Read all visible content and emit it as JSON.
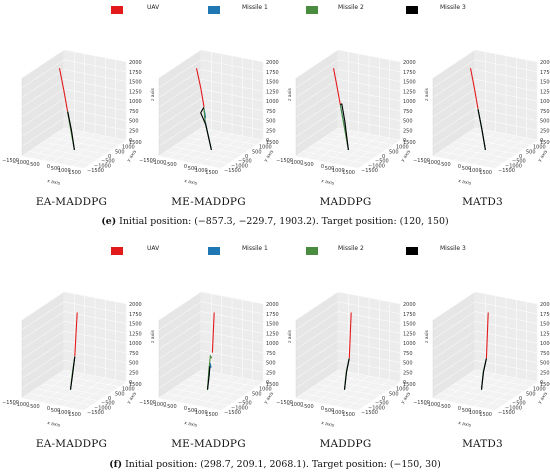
{
  "legend": [
    {
      "name": "UAV",
      "color": "#e31a1c"
    },
    {
      "name": "Missile 1",
      "color": "#1f77b4"
    },
    {
      "name": "Missile 2",
      "color": "#4a8c3f"
    },
    {
      "name": "Missile 3",
      "color": "#000000"
    }
  ],
  "axes": {
    "x_label": "x axis",
    "y_label": "y axis",
    "z_label": "z axis",
    "x_ticks": [
      "−1500",
      "−1000",
      "−500",
      "0",
      "500",
      "1000",
      "1500"
    ],
    "y_ticks": [
      "−1500",
      "−1000",
      "−500",
      "0",
      "500",
      "1000",
      "1500"
    ],
    "z_ticks": [
      "0",
      "250",
      "500",
      "750",
      "1000",
      "1250",
      "1500",
      "1750",
      "2000"
    ],
    "xlim": [
      -1500,
      1500
    ],
    "ylim": [
      -1500,
      1500
    ],
    "zlim": [
      0,
      2000
    ]
  },
  "groups": [
    {
      "id": "e",
      "caption_label": "(e)",
      "caption_text": " Initial position: (−857.3, −229.7, 1903.2). Target position: (120, 150)"
    },
    {
      "id": "f",
      "caption_label": "(f)",
      "caption_text": " Initial position: (298.7, 209.1, 2068.1). Target position: (−150, 30)"
    }
  ],
  "methods": [
    "EA-MADDPG",
    "ME-MADDPG",
    "MADDPG",
    "MATD3"
  ],
  "chart_data": [
    {
      "type": "line",
      "panel": "e1",
      "title": "EA-MADDPG",
      "series": [
        {
          "name": "UAV",
          "points": [
            [
              -857.3,
              -229.7,
              1903.2
            ],
            [
              -600,
              -150,
              1400
            ],
            [
              -350,
              -50,
              900
            ]
          ]
        },
        {
          "name": "Missile 1",
          "points": [
            [
              120,
              150,
              0
            ],
            [
              -100,
              50,
              450
            ],
            [
              -330,
              -40,
              880
            ]
          ]
        },
        {
          "name": "Missile 2",
          "points": [
            [
              120,
              150,
              0
            ],
            [
              -120,
              60,
              470
            ],
            [
              -345,
              -45,
              895
            ]
          ]
        },
        {
          "name": "Missile 3",
          "points": [
            [
              120,
              150,
              0
            ],
            [
              -90,
              40,
              440
            ],
            [
              -340,
              -50,
              890
            ]
          ]
        }
      ]
    },
    {
      "type": "line",
      "panel": "e2",
      "title": "ME-MADDPG",
      "series": [
        {
          "name": "UAV",
          "points": [
            [
              -857.3,
              -229.7,
              1903.2
            ],
            [
              -600,
              -150,
              1450
            ],
            [
              -380,
              -60,
              1000
            ]
          ]
        },
        {
          "name": "Missile 1",
          "points": [
            [
              120,
              150,
              0
            ],
            [
              -300,
              0,
              700
            ],
            [
              -200,
              100,
              800
            ],
            [
              -380,
              -50,
              980
            ]
          ]
        },
        {
          "name": "Missile 2",
          "points": [
            [
              120,
              150,
              0
            ],
            [
              -250,
              50,
              650
            ],
            [
              -400,
              -80,
              960
            ]
          ]
        },
        {
          "name": "Missile 3",
          "points": [
            [
              120,
              150,
              0
            ],
            [
              -200,
              80,
              600
            ],
            [
              -500,
              0,
              850
            ],
            [
              -390,
              -60,
              990
            ]
          ]
        }
      ]
    },
    {
      "type": "line",
      "panel": "e3",
      "title": "MADDPG",
      "series": [
        {
          "name": "UAV",
          "points": [
            [
              -857.3,
              -229.7,
              1903.2
            ],
            [
              -650,
              -160,
              1500
            ],
            [
              -420,
              -70,
              1050
            ]
          ]
        },
        {
          "name": "Missile 1",
          "points": [
            [
              120,
              150,
              0
            ],
            [
              -150,
              60,
              600
            ],
            [
              -410,
              -60,
              1040
            ]
          ]
        },
        {
          "name": "Missile 2",
          "points": [
            [
              120,
              150,
              0
            ],
            [
              -180,
              40,
              620
            ],
            [
              -425,
              -75,
              1045
            ]
          ]
        },
        {
          "name": "Missile 3",
          "points": [
            [
              120,
              150,
              0
            ],
            [
              -100,
              80,
              700
            ],
            [
              -300,
              0,
              1100
            ],
            [
              -420,
              -70,
              1050
            ]
          ]
        }
      ]
    },
    {
      "type": "line",
      "panel": "e4",
      "title": "MATD3",
      "series": [
        {
          "name": "UAV",
          "points": [
            [
              -857.3,
              -229.7,
              1903.2
            ],
            [
              -620,
              -150,
              1450
            ],
            [
              -380,
              -60,
              950
            ]
          ]
        },
        {
          "name": "Missile 1",
          "points": [
            [
              120,
              150,
              0
            ],
            [
              -120,
              50,
              500
            ],
            [
              -375,
              -55,
              945
            ]
          ]
        },
        {
          "name": "Missile 2",
          "points": [
            [
              120,
              150,
              0
            ],
            [
              -140,
              40,
              520
            ],
            [
              -385,
              -65,
              950
            ]
          ]
        },
        {
          "name": "Missile 3",
          "points": [
            [
              120,
              150,
              0
            ],
            [
              -110,
              60,
              480
            ],
            [
              -380,
              -60,
              940
            ]
          ]
        }
      ]
    },
    {
      "type": "line",
      "panel": "f1",
      "title": "EA-MADDPG",
      "series": [
        {
          "name": "UAV",
          "points": [
            [
              298.7,
              209.1,
              2068.1
            ],
            [
              200,
              150,
              1500
            ],
            [
              100,
              90,
              900
            ]
          ]
        },
        {
          "name": "Missile 1",
          "points": [
            [
              -150,
              30,
              0
            ],
            [
              -20,
              60,
              450
            ],
            [
              95,
              85,
              880
            ]
          ]
        },
        {
          "name": "Missile 2",
          "points": [
            [
              -150,
              30,
              0
            ],
            [
              -40,
              55,
              450
            ],
            [
              90,
              80,
              870
            ]
          ]
        },
        {
          "name": "Missile 3",
          "points": [
            [
              -150,
              30,
              0
            ],
            [
              -30,
              50,
              430
            ],
            [
              100,
              88,
              890
            ]
          ]
        }
      ]
    },
    {
      "type": "line",
      "panel": "f2",
      "title": "ME-MADDPG",
      "series": [
        {
          "name": "UAV",
          "points": [
            [
              298.7,
              209.1,
              2068.1
            ],
            [
              230,
              170,
              1600
            ],
            [
              150,
              120,
              1000
            ]
          ]
        },
        {
          "name": "Missile 1",
          "points": [
            [
              -150,
              30,
              0
            ],
            [
              -50,
              50,
              400
            ],
            [
              0,
              60,
              700
            ],
            [
              60,
              80,
              600
            ]
          ]
        },
        {
          "name": "Missile 2",
          "points": [
            [
              -150,
              30,
              0
            ],
            [
              -80,
              40,
              500
            ],
            [
              20,
              70,
              900
            ],
            [
              100,
              100,
              850
            ]
          ]
        },
        {
          "name": "Missile 3",
          "points": [
            [
              -150,
              30,
              0
            ],
            [
              -60,
              45,
              380
            ],
            [
              -20,
              55,
              620
            ]
          ]
        }
      ]
    },
    {
      "type": "line",
      "panel": "f3",
      "title": "MADDPG",
      "series": [
        {
          "name": "UAV",
          "points": [
            [
              298.7,
              209.1,
              2068.1
            ],
            [
              220,
              160,
              1500
            ],
            [
              130,
              100,
              850
            ]
          ]
        },
        {
          "name": "Missile 1",
          "points": [
            [
              -150,
              30,
              0
            ],
            [
              -20,
              70,
              500
            ],
            [
              120,
              95,
              840
            ]
          ]
        },
        {
          "name": "Missile 2",
          "points": [
            [
              -150,
              30,
              0
            ],
            [
              -40,
              60,
              480
            ],
            [
              110,
              90,
              830
            ]
          ]
        },
        {
          "name": "Missile 3",
          "points": [
            [
              -150,
              30,
              0
            ],
            [
              -30,
              65,
              470
            ],
            [
              125,
              98,
              845
            ]
          ]
        }
      ]
    },
    {
      "type": "line",
      "panel": "f4",
      "title": "MATD3",
      "series": [
        {
          "name": "UAV",
          "points": [
            [
              298.7,
              209.1,
              2068.1
            ],
            [
              220,
              160,
              1450
            ],
            [
              140,
              105,
              850
            ]
          ]
        },
        {
          "name": "Missile 1",
          "points": [
            [
              -150,
              30,
              0
            ],
            [
              -30,
              60,
              480
            ],
            [
              130,
              100,
              840
            ]
          ]
        },
        {
          "name": "Missile 2",
          "points": [
            [
              -150,
              30,
              0
            ],
            [
              -50,
              55,
              470
            ],
            [
              120,
              95,
              830
            ]
          ]
        },
        {
          "name": "Missile 3",
          "points": [
            [
              -150,
              30,
              0
            ],
            [
              -40,
              58,
              460
            ],
            [
              135,
              102,
              845
            ]
          ]
        }
      ]
    }
  ]
}
